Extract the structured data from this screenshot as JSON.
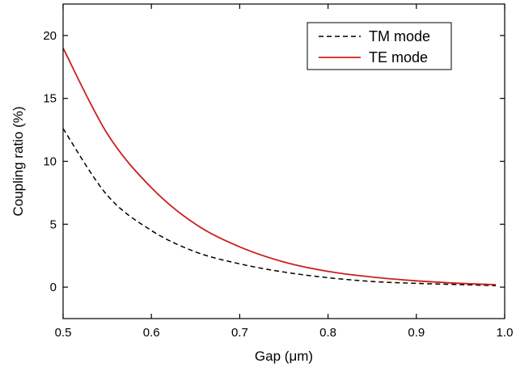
{
  "chart_data": {
    "type": "line",
    "xlabel": "Gap (μm)",
    "ylabel": "Coupling ratio (%)",
    "xlim": [
      0.5,
      1.0
    ],
    "ylim": [
      -2.5,
      22.5
    ],
    "xticks": [
      "0.5",
      "0.6",
      "0.7",
      "0.8",
      "0.9",
      "1.0"
    ],
    "xtick_values": [
      0.5,
      0.6,
      0.7,
      0.8,
      0.9,
      1.0
    ],
    "yticks": [
      "0",
      "5",
      "10",
      "15",
      "20"
    ],
    "ytick_values": [
      0,
      5,
      10,
      15,
      20
    ],
    "grid": false,
    "legend_position": "top-right",
    "series": [
      {
        "name": "TM mode",
        "color": "#000000",
        "dashed": true,
        "x": [
          0.5,
          0.55,
          0.6,
          0.65,
          0.7,
          0.75,
          0.8,
          0.85,
          0.9,
          0.95,
          0.99
        ],
        "y": [
          12.6,
          7.3,
          4.5,
          2.8,
          1.85,
          1.2,
          0.75,
          0.45,
          0.3,
          0.2,
          0.12
        ]
      },
      {
        "name": "TE mode",
        "color": "#cc1f1f",
        "dashed": false,
        "x": [
          0.5,
          0.55,
          0.6,
          0.65,
          0.7,
          0.75,
          0.8,
          0.85,
          0.9,
          0.95,
          0.99
        ],
        "y": [
          19.0,
          12.2,
          7.9,
          5.0,
          3.2,
          2.0,
          1.25,
          0.8,
          0.5,
          0.3,
          0.2
        ]
      }
    ]
  }
}
